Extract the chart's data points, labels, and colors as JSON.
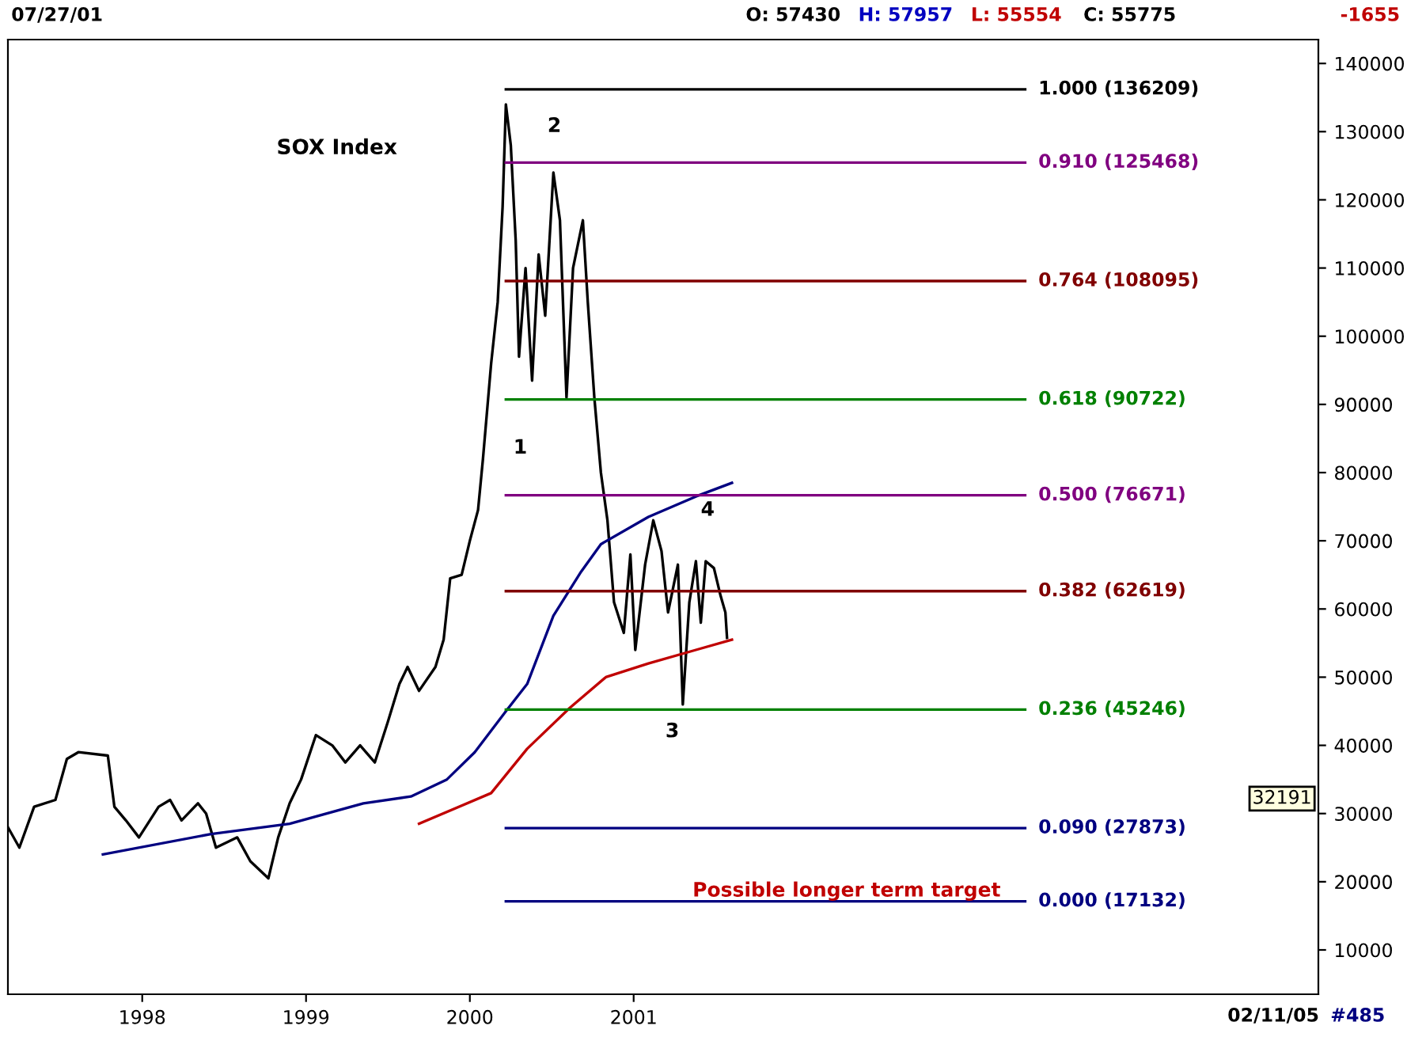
{
  "chart_data": {
    "type": "line",
    "title": "SOX Index",
    "xlim": [
      1997.18,
      2005.18
    ],
    "xticks": [
      1998,
      1999,
      2000,
      2001
    ],
    "ylim": [
      3500,
      143500
    ],
    "yticks": [
      10000,
      20000,
      30000,
      40000,
      50000,
      60000,
      70000,
      80000,
      90000,
      100000,
      110000,
      120000,
      130000,
      140000
    ],
    "grid": false,
    "legend": false,
    "marker": "none",
    "line_style": "solid",
    "series": [
      {
        "color": "#000000",
        "x": [
          1997.18,
          1997.25,
          1997.34,
          1997.47,
          1997.54,
          1997.61,
          1997.79,
          1997.83,
          1997.9,
          1997.98,
          1998.1,
          1998.17,
          1998.24,
          1998.34,
          1998.39,
          1998.45,
          1998.58,
          1998.66,
          1998.77,
          1998.83,
          1998.9,
          1998.97,
          1999.06,
          1999.16,
          1999.24,
          1999.33,
          1999.42,
          1999.5,
          1999.57,
          1999.62,
          1999.69,
          1999.79,
          1999.84,
          1999.88,
          1999.95,
          2000.0,
          2000.05,
          2000.08,
          2000.13,
          2000.17,
          2000.2,
          2000.22,
          2000.25,
          2000.28,
          2000.3,
          2000.34,
          2000.38,
          2000.42,
          2000.46,
          2000.51,
          2000.55,
          2000.59,
          2000.63,
          2000.69,
          2000.72,
          2000.76,
          2000.8,
          2000.84,
          2000.88,
          2000.94,
          2000.98,
          2001.01,
          2001.07,
          2001.12,
          2001.17,
          2001.21,
          2001.27,
          2001.3,
          2001.34,
          2001.38,
          2001.41,
          2001.44,
          2001.49,
          2001.53,
          2001.56,
          2001.57
        ],
        "values": [
          28000,
          25000,
          31000,
          32000,
          38000,
          39000,
          38500,
          31000,
          29000,
          26500,
          31000,
          32000,
          29000,
          31500,
          30000,
          25000,
          26500,
          23000,
          20500,
          26500,
          31500,
          35000,
          41500,
          40000,
          37500,
          40000,
          37500,
          43500,
          49000,
          51500,
          48000,
          51500,
          55500,
          64500,
          65000,
          70000,
          74500,
          82000,
          96000,
          105000,
          119000,
          134000,
          128000,
          114000,
          97000,
          110000,
          93500,
          112000,
          103000,
          124000,
          117000,
          91000,
          110000,
          117000,
          105000,
          91000,
          80000,
          73000,
          61000,
          56500,
          68000,
          54000,
          66500,
          73000,
          68500,
          59500,
          66500,
          46000,
          61000,
          67000,
          58000,
          67000,
          66000,
          62000,
          59500,
          55775
        ]
      },
      {
        "color": "#000080",
        "x": [
          1997.76,
          1998.42,
          1998.9,
          1999.35,
          1999.64,
          1999.86,
          2000.03,
          2000.22,
          2000.35,
          2000.51,
          2000.68,
          2000.8,
          2001.09,
          2001.38,
          2001.6
        ],
        "values": [
          24000,
          27000,
          28500,
          31500,
          32500,
          35000,
          39000,
          45000,
          49000,
          59000,
          65500,
          69500,
          73500,
          76500,
          78500
        ]
      },
      {
        "color": "#c00000",
        "x": [
          1999.69,
          2000.13,
          2000.35,
          2000.61,
          2000.83,
          2001.09,
          2001.38,
          2001.6
        ],
        "values": [
          28500,
          33000,
          39500,
          45500,
          50000,
          52000,
          54000,
          55500
        ]
      },
      {
        "name": "1.000 (136209)",
        "color": "#000000",
        "x": [
          2000.22,
          2003.39
        ],
        "values": [
          136209,
          136209
        ]
      },
      {
        "name": "0.910 (125468)",
        "color": "#800080",
        "x": [
          2000.22,
          2003.39
        ],
        "values": [
          125468,
          125468
        ]
      },
      {
        "name": "0.764 (108095)",
        "color": "#800000",
        "x": [
          2000.22,
          2003.39
        ],
        "values": [
          108095,
          108095
        ]
      },
      {
        "name": "0.618 (90722)",
        "color": "#008000",
        "x": [
          2000.22,
          2003.39
        ],
        "values": [
          90722,
          90722
        ]
      },
      {
        "name": "0.500 (76671)",
        "color": "#800080",
        "x": [
          2000.22,
          2003.39
        ],
        "values": [
          76671,
          76671
        ]
      },
      {
        "name": "0.382 (62619)",
        "color": "#800000",
        "x": [
          2000.22,
          2003.39
        ],
        "values": [
          62619,
          62619
        ]
      },
      {
        "name": "0.236 (45246)",
        "color": "#008000",
        "x": [
          2000.22,
          2003.39
        ],
        "values": [
          45246,
          45246
        ]
      },
      {
        "name": "0.090 (27873)",
        "color": "#000080",
        "x": [
          2000.22,
          2003.39
        ],
        "values": [
          27873,
          27873
        ]
      },
      {
        "name": "0.000 (17132)",
        "color": "#000080",
        "x": [
          2000.22,
          2003.39
        ],
        "values": [
          17132,
          17132
        ]
      }
    ],
    "annotations": [
      "1",
      "2",
      "3",
      "4",
      "Possible longer term target",
      {
        "text": "32191",
        "y": 32191
      },
      "07/27/01",
      "O: 57430",
      "H: 57957",
      "L: 55554",
      "C: 55775",
      "-1655",
      "02/11/05",
      "#485"
    ]
  }
}
